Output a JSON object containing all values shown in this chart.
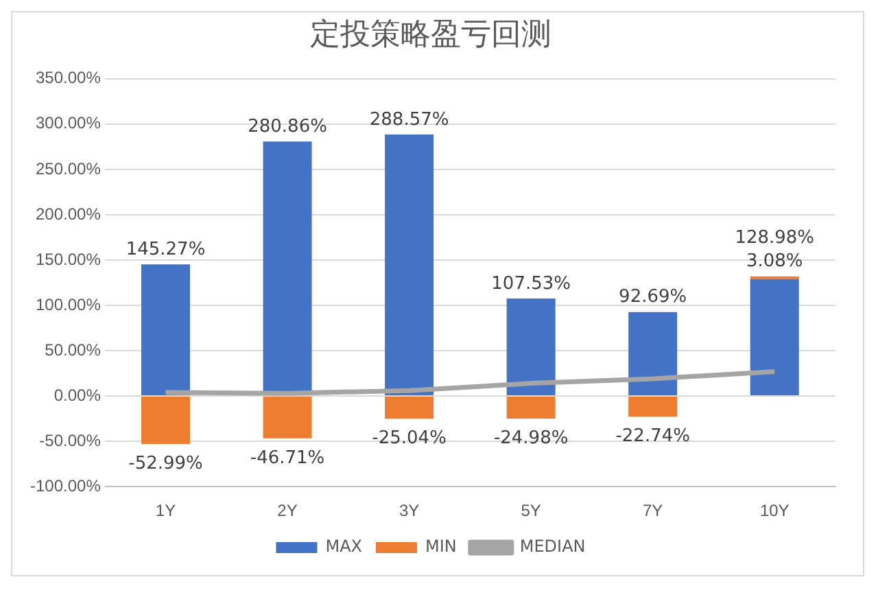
{
  "chart_data": {
    "type": "bar",
    "title": "定投策略盈亏回测",
    "categories": [
      "1Y",
      "2Y",
      "3Y",
      "5Y",
      "7Y",
      "10Y"
    ],
    "stacked": true,
    "series": [
      {
        "name": "MAX",
        "color": "#4472c4",
        "values": [
          145.27,
          280.86,
          288.57,
          107.53,
          92.69,
          128.98
        ],
        "value_labels": [
          "145.27%",
          "280.86%",
          "288.57%",
          "107.53%",
          "92.69%",
          "128.98%"
        ]
      },
      {
        "name": "MIN",
        "color": "#ed7d31",
        "values": [
          -52.99,
          -46.71,
          -25.04,
          -24.98,
          -22.74,
          3.08
        ],
        "value_labels": [
          "-52.99%",
          "-46.71%",
          "-25.04%",
          "-24.98%",
          "-22.74%",
          "3.08%"
        ]
      },
      {
        "name": "MEDIAN",
        "type": "line",
        "color": "#a5a5a5",
        "values": [
          4,
          3,
          6,
          14,
          19,
          27
        ],
        "marker": "none"
      }
    ],
    "ylim": [
      -100,
      350
    ],
    "yticks": [
      {
        "value": -100,
        "label": "-100.00%"
      },
      {
        "value": -50,
        "label": "-50.00%"
      },
      {
        "value": 0,
        "label": "0.00%"
      },
      {
        "value": 50,
        "label": "50.00%"
      },
      {
        "value": 100,
        "label": "100.00%"
      },
      {
        "value": 150,
        "label": "150.00%"
      },
      {
        "value": 200,
        "label": "200.00%"
      },
      {
        "value": 250,
        "label": "250.00%"
      },
      {
        "value": 300,
        "label": "300.00%"
      },
      {
        "value": 350,
        "label": "350.00%"
      }
    ],
    "grid": "y",
    "legend": "bottom"
  }
}
